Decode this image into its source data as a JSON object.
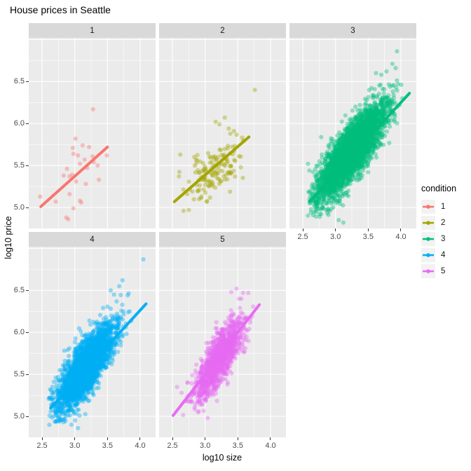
{
  "chart_data": {
    "type": "scatter",
    "title": "House prices in Seattle",
    "xlabel": "log10 size",
    "ylabel": "log10 price",
    "x_tick_labels": [
      "2.5",
      "3.0",
      "3.5",
      "4.0"
    ],
    "x_tick_values": [
      2.5,
      3.0,
      3.5,
      4.0
    ],
    "y_tick_labels": [
      "5.0",
      "5.5",
      "6.0",
      "6.5"
    ],
    "y_tick_values": [
      5.0,
      5.5,
      6.0,
      6.5
    ],
    "x_range": [
      2.296,
      4.236
    ],
    "y_range": [
      4.75,
      7.02
    ],
    "x_minor_gridlines": [
      2.75,
      3.25,
      3.75
    ],
    "y_minor_gridlines": [
      5.25,
      5.75,
      6.25,
      6.75
    ],
    "y_major_extra": [
      7.0
    ],
    "grid": true,
    "panel_bg": "#EBEBEB",
    "strip_bg": "#D9D9D9",
    "grid_color": "#FFFFFF",
    "point_alpha": 0.4,
    "point_radius": 3.1,
    "line_width": 4,
    "legend": {
      "title": "condition",
      "position": "right",
      "entries": [
        {
          "label": "1",
          "color": "#F8766D"
        },
        {
          "label": "2",
          "color": "#A3A500"
        },
        {
          "label": "3",
          "color": "#00BF7D"
        },
        {
          "label": "4",
          "color": "#00B0F6"
        },
        {
          "label": "5",
          "color": "#E76BF3"
        }
      ]
    },
    "facets": [
      {
        "label": "1",
        "color": "#F8766D",
        "regression": {
          "x1": 2.48,
          "y1": 5.01,
          "x2": 3.5,
          "y2": 5.72
        },
        "points": [
          [
            2.47,
            5.13
          ],
          [
            2.71,
            5.07
          ],
          [
            2.83,
            5.38
          ],
          [
            2.87,
            4.88
          ],
          [
            2.88,
            5.46
          ],
          [
            2.9,
            4.86
          ],
          [
            2.92,
            5.37
          ],
          [
            2.92,
            5.16
          ],
          [
            2.96,
            5.39
          ],
          [
            2.97,
            5.71
          ],
          [
            2.98,
            5.64
          ],
          [
            2.98,
            4.99
          ],
          [
            3.01,
            5.82
          ],
          [
            3.02,
            5.31
          ],
          [
            3.05,
            5.62
          ],
          [
            3.08,
            5.52
          ],
          [
            3.08,
            5.08
          ],
          [
            3.1,
            5.06
          ],
          [
            3.12,
            5.74
          ],
          [
            3.15,
            5.57
          ],
          [
            3.17,
            5.28
          ],
          [
            3.19,
            5.47
          ],
          [
            3.22,
            5.72
          ],
          [
            3.27,
            5.61
          ],
          [
            3.28,
            6.17
          ],
          [
            3.29,
            5.54
          ],
          [
            3.35,
            5.5
          ],
          [
            3.37,
            5.33
          ],
          [
            3.49,
            5.62
          ]
        ]
      },
      {
        "label": "2",
        "color": "#A3A500",
        "regression": {
          "x1": 2.53,
          "y1": 5.07,
          "x2": 3.67,
          "y2": 5.84
        },
        "cloud": {
          "n": 145,
          "cx": 3.14,
          "cy": 5.43,
          "sx": 0.2,
          "sy": 0.165,
          "rho": 0.55,
          "clip": [
            2.58,
            3.6,
            4.95,
            6.08
          ],
          "seed": 11
        },
        "points": [
          [
            3.76,
            6.4
          ],
          [
            3.3,
            6.07
          ],
          [
            3.36,
            5.94
          ],
          [
            3.44,
            5.91
          ],
          [
            2.62,
            5.63
          ],
          [
            2.6,
            5.37
          ],
          [
            2.67,
            4.96
          ],
          [
            2.75,
            4.97
          ],
          [
            3.16,
            6.02
          ],
          [
            3.22,
            5.99
          ]
        ]
      },
      {
        "label": "3",
        "color": "#00BF7D",
        "regression": {
          "x1": 2.6,
          "y1": 5.07,
          "x2": 4.13,
          "y2": 6.36
        },
        "cloud": {
          "n": 4300,
          "cx": 3.24,
          "cy": 5.66,
          "sx": 0.245,
          "sy": 0.265,
          "rho": 0.83,
          "clip": [
            2.56,
            4.02,
            4.84,
            6.62
          ],
          "seed": 23
        },
        "points": [
          [
            3.94,
            6.86
          ],
          [
            3.87,
            6.71
          ],
          [
            3.92,
            6.66
          ],
          [
            3.78,
            6.62
          ],
          [
            3.7,
            6.58
          ],
          [
            3.62,
            6.6
          ],
          [
            2.58,
            5.52
          ],
          [
            2.6,
            5.44
          ],
          [
            2.62,
            5.08
          ],
          [
            2.72,
            4.99
          ],
          [
            2.78,
            4.92
          ],
          [
            3.05,
            4.85
          ],
          [
            3.12,
            4.82
          ],
          [
            4.02,
            6.3
          ],
          [
            3.98,
            6.22
          ]
        ]
      },
      {
        "label": "4",
        "color": "#00B0F6",
        "regression": {
          "x1": 2.63,
          "y1": 5.1,
          "x2": 4.09,
          "y2": 6.34
        },
        "cloud": {
          "n": 3300,
          "cx": 3.17,
          "cy": 5.58,
          "sx": 0.215,
          "sy": 0.25,
          "rho": 0.8,
          "clip": [
            2.6,
            3.92,
            4.88,
            6.52
          ],
          "seed": 37
        },
        "points": [
          [
            4.05,
            6.87
          ],
          [
            3.73,
            6.62
          ],
          [
            3.68,
            6.55
          ],
          [
            2.65,
            5.28
          ],
          [
            2.62,
            5.22
          ],
          [
            2.83,
            4.93
          ],
          [
            2.95,
            4.9
          ],
          [
            3.05,
            4.86
          ],
          [
            3.55,
            6.5
          ],
          [
            3.6,
            6.45
          ]
        ]
      },
      {
        "label": "5",
        "color": "#E76BF3",
        "regression": {
          "x1": 2.51,
          "y1": 5.01,
          "x2": 3.83,
          "y2": 6.33
        },
        "cloud": {
          "n": 1250,
          "cx": 3.21,
          "cy": 5.67,
          "sx": 0.185,
          "sy": 0.235,
          "rho": 0.78,
          "clip": [
            2.6,
            3.74,
            5.0,
            6.45
          ],
          "seed": 51
        },
        "points": [
          [
            2.57,
            5.35
          ],
          [
            2.7,
            5.18
          ],
          [
            3.04,
            4.98
          ],
          [
            3.48,
            6.52
          ],
          [
            3.58,
            6.47
          ],
          [
            3.66,
            6.47
          ],
          [
            3.4,
            6.48
          ],
          [
            3.52,
            6.4
          ],
          [
            2.64,
            5.28
          ]
        ]
      }
    ]
  }
}
